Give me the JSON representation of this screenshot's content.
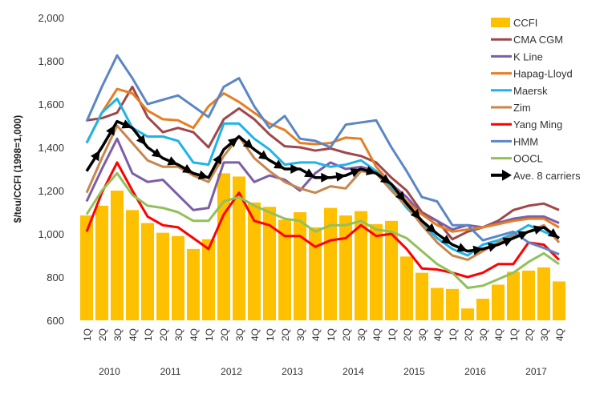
{
  "chart_data": {
    "type": "bar+line",
    "title": "",
    "ylabel": "$/teu/CCFI (1998=1,000)",
    "xlabel": "",
    "ylim": [
      600,
      2000
    ],
    "yticks": [
      "600",
      "800",
      "1,000",
      "1,200",
      "1,400",
      "1,600",
      "1,800",
      "2,000"
    ],
    "ytick_values": [
      600,
      800,
      1000,
      1200,
      1400,
      1600,
      1800,
      2000
    ],
    "grid": false,
    "legend_position": "top-right",
    "years": [
      "2010",
      "2011",
      "2012",
      "2013",
      "2014",
      "2015",
      "2016",
      "2017"
    ],
    "quarters": [
      "1Q",
      "2Q",
      "3Q",
      "4Q"
    ],
    "bars": {
      "name": "CCFI",
      "color": "#FFC000",
      "values": [
        1085,
        1130,
        1200,
        1110,
        1050,
        1005,
        990,
        930,
        975,
        1280,
        1265,
        1145,
        1125,
        1065,
        1100,
        1030,
        1120,
        1085,
        1105,
        1045,
        1060,
        895,
        820,
        750,
        745,
        655,
        700,
        765,
        825,
        830,
        845,
        780
      ]
    },
    "series": [
      {
        "name": "CMA CGM",
        "color": "#A0474A",
        "values": [
          1525,
          1535,
          1560,
          1680,
          1540,
          1470,
          1490,
          1470,
          1400,
          1530,
          1580,
          1530,
          1460,
          1405,
          1400,
          1385,
          1395,
          1375,
          1360,
          1330,
          1260,
          1200,
          1100,
          1060,
          975,
          1010,
          1030,
          1060,
          1110,
          1130,
          1140,
          1110
        ]
      },
      {
        "name": "K Line",
        "color": "#7B5EA7",
        "values": [
          1150,
          1300,
          1440,
          1280,
          1240,
          1250,
          1180,
          1110,
          1120,
          1330,
          1330,
          1240,
          1270,
          1250,
          1200,
          1280,
          1330,
          1300,
          1310,
          1290,
          1230,
          1170,
          1090,
          1060,
          1020,
          1040,
          1030,
          1050,
          1070,
          1080,
          1080,
          1050
        ]
      },
      {
        "name": "Hapag-Lloyd",
        "color": "#E67E22",
        "values": [
          1420,
          1560,
          1670,
          1650,
          1570,
          1530,
          1525,
          1490,
          1590,
          1650,
          1610,
          1560,
          1510,
          1480,
          1420,
          1415,
          1420,
          1445,
          1440,
          1310,
          1230,
          1150,
          1090,
          1040,
          1010,
          1020,
          1030,
          1045,
          1060,
          1070,
          1070,
          1030
        ]
      },
      {
        "name": "Maersk",
        "color": "#1EB4E8",
        "values": [
          1420,
          1560,
          1625,
          1490,
          1450,
          1450,
          1430,
          1330,
          1320,
          1510,
          1510,
          1440,
          1390,
          1320,
          1330,
          1330,
          1310,
          1320,
          1340,
          1290,
          1210,
          1120,
          1050,
          980,
          930,
          900,
          950,
          970,
          1000,
          1040,
          1010,
          980
        ]
      },
      {
        "name": "Zim",
        "color": "#C8864E",
        "values": [
          1190,
          1350,
          1500,
          1420,
          1340,
          1310,
          1310,
          1270,
          1240,
          1360,
          1450,
          1350,
          1290,
          1240,
          1210,
          1190,
          1220,
          1210,
          1290,
          1280,
          1200,
          1130,
          1040,
          960,
          900,
          880,
          920,
          960,
          990,
          1010,
          1040,
          960
        ]
      },
      {
        "name": "Yang Ming",
        "color": "#FF0000",
        "values": [
          1010,
          1190,
          1330,
          1200,
          1080,
          1040,
          1030,
          980,
          930,
          1090,
          1190,
          1060,
          1040,
          990,
          990,
          940,
          970,
          980,
          1040,
          990,
          1000,
          930,
          840,
          835,
          820,
          800,
          820,
          860,
          860,
          960,
          950,
          880
        ]
      },
      {
        "name": "HMM",
        "color": "#5B86C5",
        "values": [
          1520,
          1680,
          1825,
          1720,
          1600,
          1620,
          1640,
          1590,
          1540,
          1680,
          1720,
          1590,
          1490,
          1545,
          1440,
          1430,
          1400,
          1505,
          1515,
          1525,
          1400,
          1290,
          1170,
          1150,
          1040,
          1040,
          970,
          990,
          1010,
          960,
          935,
          905
        ]
      },
      {
        "name": "OOCL",
        "color": "#92C05A",
        "values": [
          1090,
          1200,
          1280,
          1180,
          1130,
          1120,
          1100,
          1060,
          1060,
          1150,
          1170,
          1130,
          1100,
          1070,
          1060,
          1010,
          1040,
          1040,
          1060,
          1020,
          1010,
          980,
          920,
          860,
          820,
          750,
          760,
          790,
          820,
          870,
          910,
          860
        ]
      },
      {
        "name": "Ave. 8 carriers",
        "color": "#000000",
        "marker": "arrow",
        "values": [
          1290,
          1400,
          1520,
          1490,
          1400,
          1350,
          1320,
          1280,
          1260,
          1390,
          1450,
          1390,
          1340,
          1300,
          1300,
          1260,
          1260,
          1270,
          1300,
          1280,
          1230,
          1140,
          1060,
          1000,
          950,
          920,
          930,
          950,
          980,
          1010,
          1030,
          980
        ]
      }
    ]
  }
}
